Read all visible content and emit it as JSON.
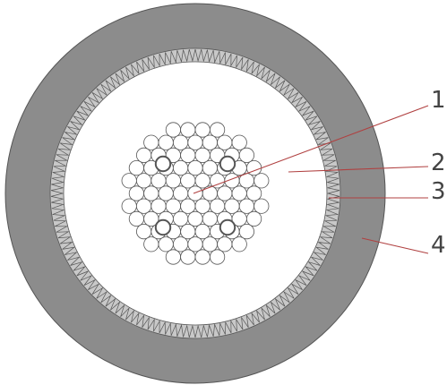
{
  "diagram": {
    "labels": [
      "1",
      "2",
      "3",
      "4"
    ],
    "colors": {
      "jacket": "#8c8c8c",
      "jacket_edge": "#555555",
      "insulation": "#ffffff",
      "shield_ring": "#c8c8c8",
      "strand_stroke": "#555555",
      "leader_line": "#b04040",
      "label_text": "#444444"
    }
  }
}
